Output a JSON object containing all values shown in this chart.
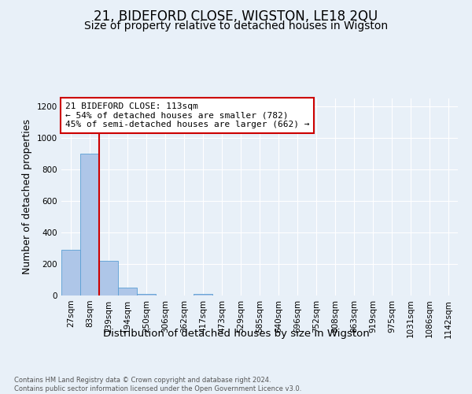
{
  "title": "21, BIDEFORD CLOSE, WIGSTON, LE18 2QU",
  "subtitle": "Size of property relative to detached houses in Wigston",
  "xlabel": "Distribution of detached houses by size in Wigston",
  "ylabel": "Number of detached properties",
  "bin_labels": [
    "27sqm",
    "83sqm",
    "139sqm",
    "194sqm",
    "250sqm",
    "306sqm",
    "362sqm",
    "417sqm",
    "473sqm",
    "529sqm",
    "585sqm",
    "640sqm",
    "696sqm",
    "752sqm",
    "808sqm",
    "863sqm",
    "919sqm",
    "975sqm",
    "1031sqm",
    "1086sqm",
    "1142sqm"
  ],
  "bar_heights": [
    290,
    900,
    220,
    50,
    10,
    0,
    0,
    10,
    0,
    0,
    0,
    0,
    0,
    0,
    0,
    0,
    0,
    0,
    0,
    0,
    0
  ],
  "bar_color": "#aec6e8",
  "bar_edge_color": "#5a9fd4",
  "vline_color": "#cc0000",
  "vline_pos": 1.5,
  "annotation_text": "21 BIDEFORD CLOSE: 113sqm\n← 54% of detached houses are smaller (782)\n45% of semi-detached houses are larger (662) →",
  "annotation_box_color": "#ffffff",
  "annotation_box_edge": "#cc0000",
  "ylim": [
    0,
    1250
  ],
  "yticks": [
    0,
    200,
    400,
    600,
    800,
    1000,
    1200
  ],
  "footer_text": "Contains HM Land Registry data © Crown copyright and database right 2024.\nContains public sector information licensed under the Open Government Licence v3.0.",
  "bg_color": "#e8f0f8",
  "title_fontsize": 12,
  "subtitle_fontsize": 10,
  "tick_fontsize": 7.5,
  "ylabel_fontsize": 9,
  "xlabel_fontsize": 9.5
}
